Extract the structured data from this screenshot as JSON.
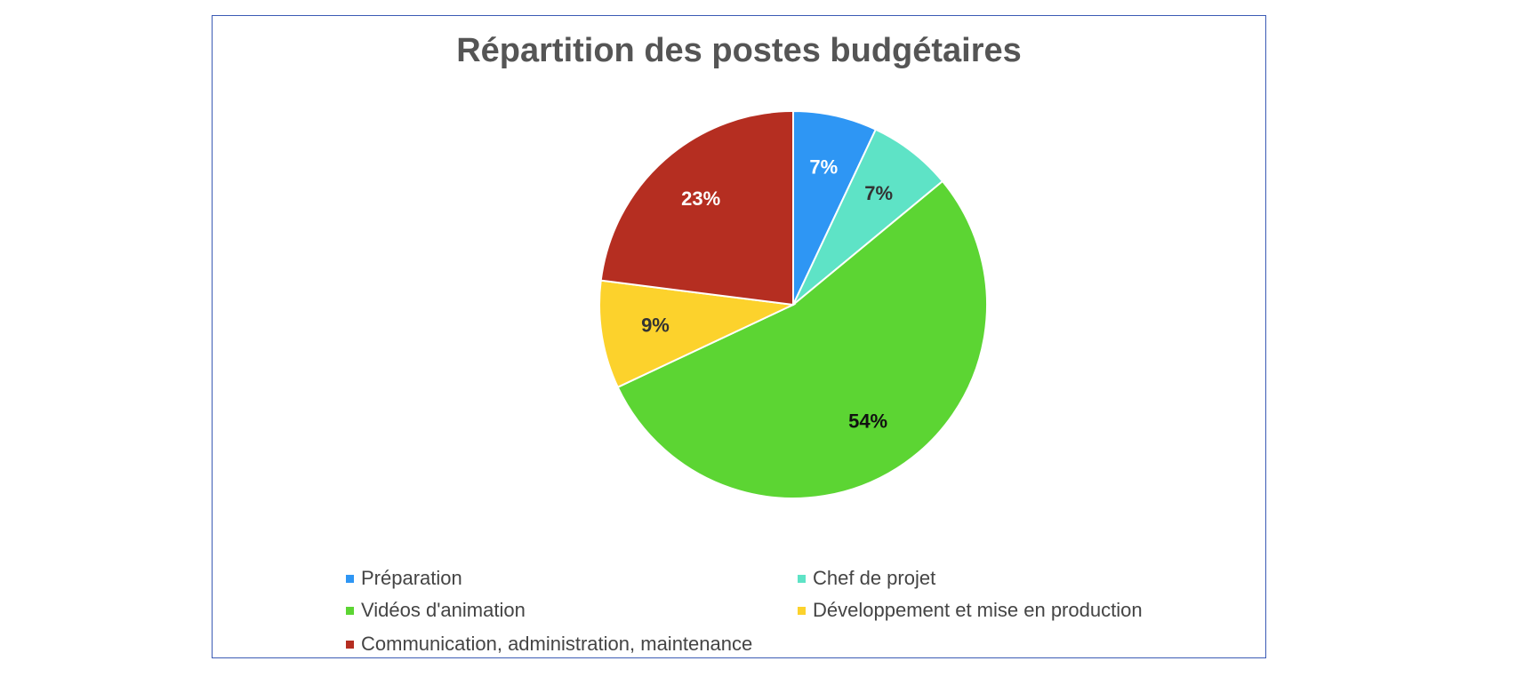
{
  "chart_data": {
    "type": "pie",
    "title": "Répartition des postes budgétaires",
    "categories": [
      "Préparation",
      "Chef de projet",
      "Vidéos d'animation",
      "Développement et mise en production",
      "Communication, administration, maintenance"
    ],
    "values": [
      7,
      7,
      54,
      9,
      23
    ],
    "data_labels": [
      "7%",
      "7%",
      "54%",
      "9%",
      "23%"
    ],
    "colors": [
      "#2e96f4",
      "#5ee3c6",
      "#5cd533",
      "#fcd22c",
      "#b52e21"
    ],
    "label_colors": [
      "#ffffff",
      "#333333",
      "#111111",
      "#333333",
      "#ffffff"
    ],
    "legend_position": "bottom"
  }
}
